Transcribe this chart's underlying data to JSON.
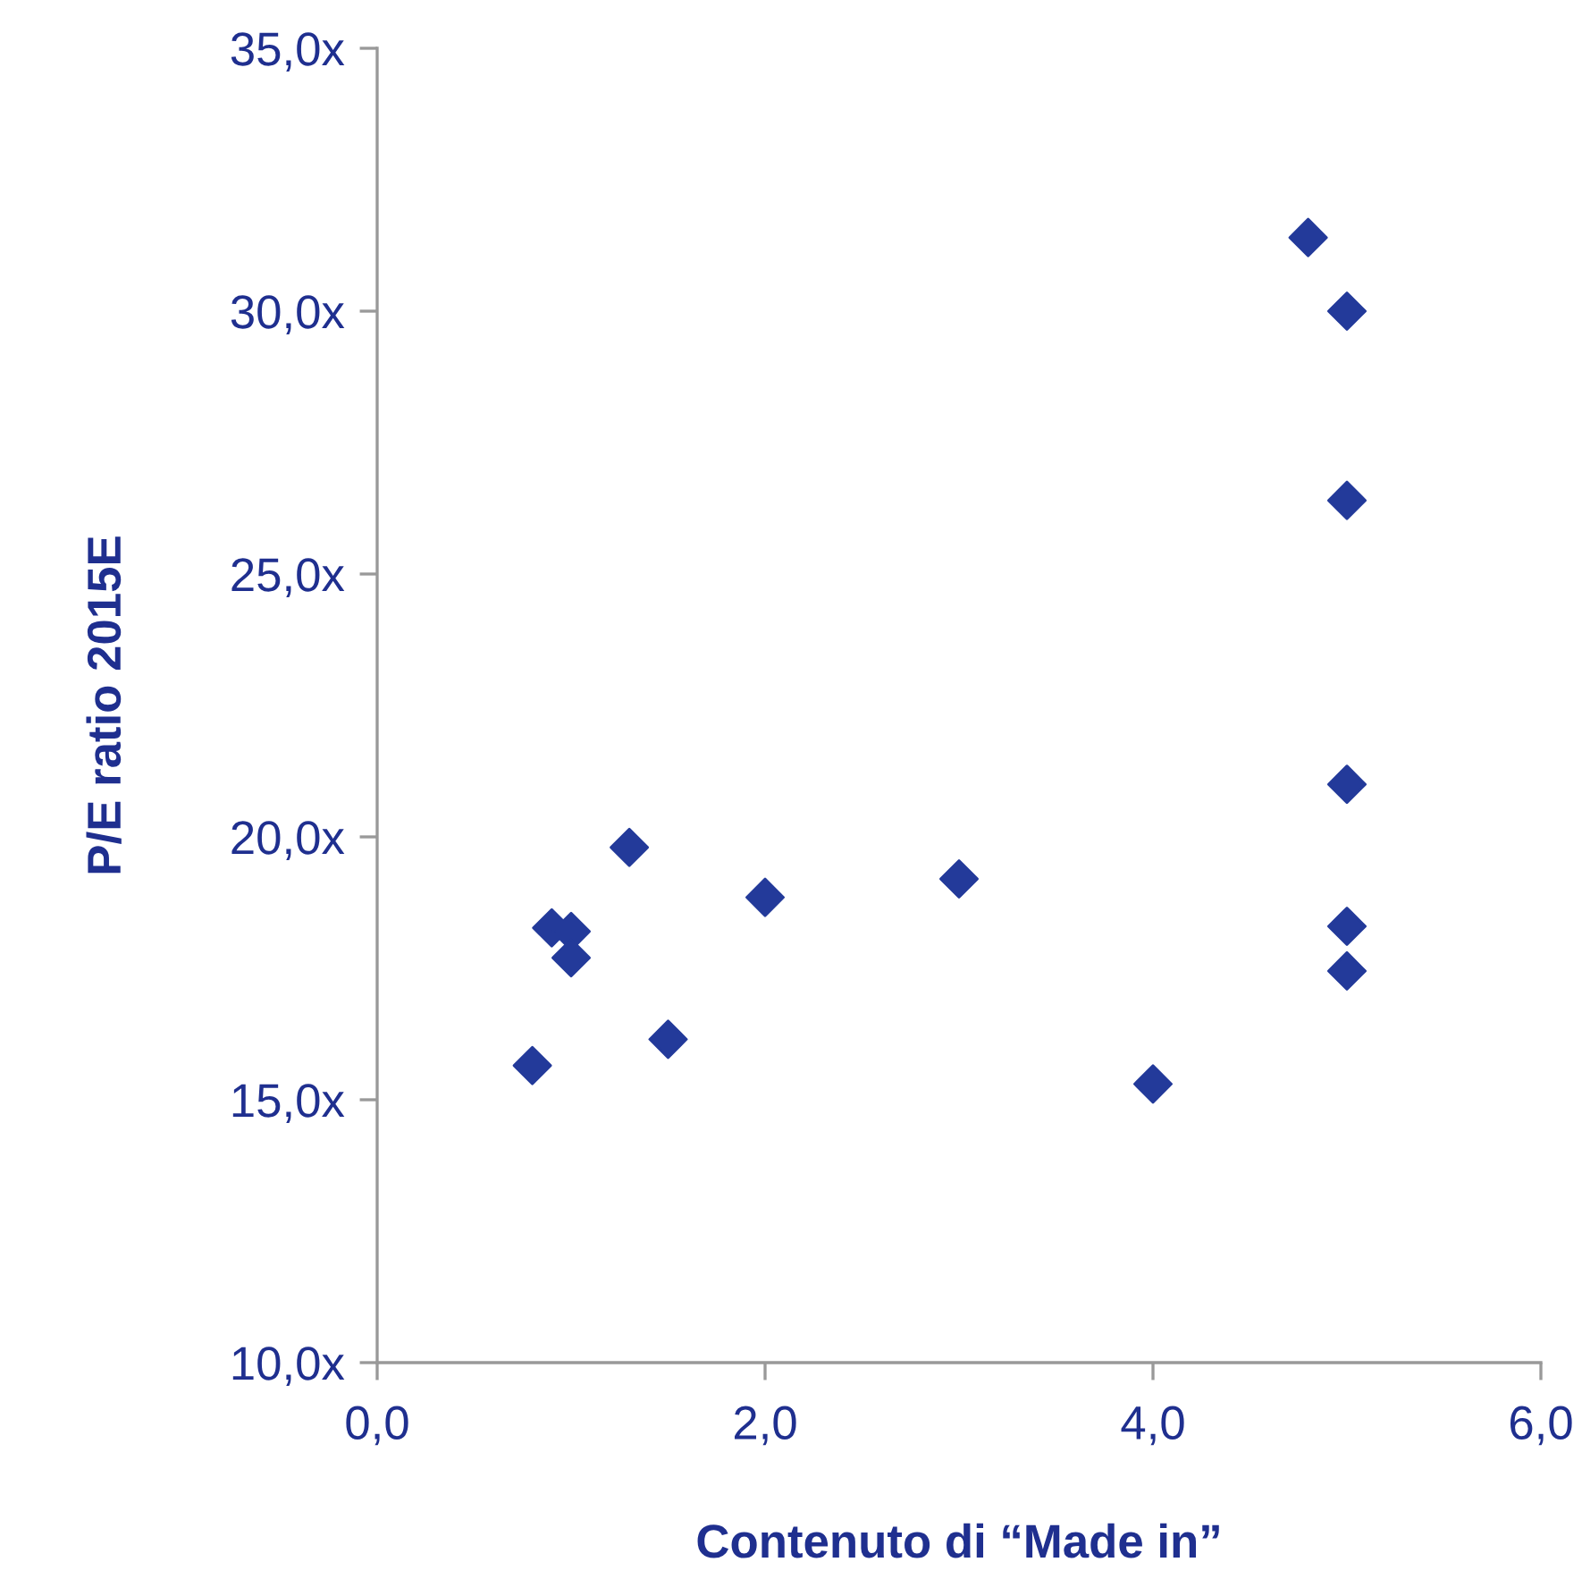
{
  "chart_data": {
    "type": "scatter",
    "xlabel": "Contenuto di “Made in”",
    "ylabel": "P/E ratio 2015E",
    "x": [
      0.8,
      0.9,
      1.0,
      1.0,
      1.3,
      1.5,
      2.0,
      3.0,
      4.0,
      4.8,
      5.0,
      5.0,
      5.0,
      5.0,
      5.0
    ],
    "series": [
      {
        "color": "#233a9a",
        "values": [
          15.65,
          18.27,
          18.2,
          17.7,
          19.8,
          16.15,
          18.85,
          19.2,
          15.3,
          31.4,
          30.0,
          26.4,
          21.0,
          18.3,
          17.45
        ]
      }
    ],
    "marker": "diamond",
    "grid": false,
    "legend": false,
    "xlim": [
      0,
      6
    ],
    "ylim": [
      10,
      35
    ],
    "xticks": [
      {
        "value": 0,
        "label": "0,0"
      },
      {
        "value": 2,
        "label": "2,0"
      },
      {
        "value": 4,
        "label": "4,0"
      },
      {
        "value": 6,
        "label": "6,0"
      }
    ],
    "yticks": [
      {
        "value": 10,
        "label": "10,0x"
      },
      {
        "value": 15,
        "label": "15,0x"
      },
      {
        "value": 20,
        "label": "20,0x"
      },
      {
        "value": 25,
        "label": "25,0x"
      },
      {
        "value": 30,
        "label": "30,0x"
      },
      {
        "value": 35,
        "label": "35,0x"
      }
    ]
  }
}
